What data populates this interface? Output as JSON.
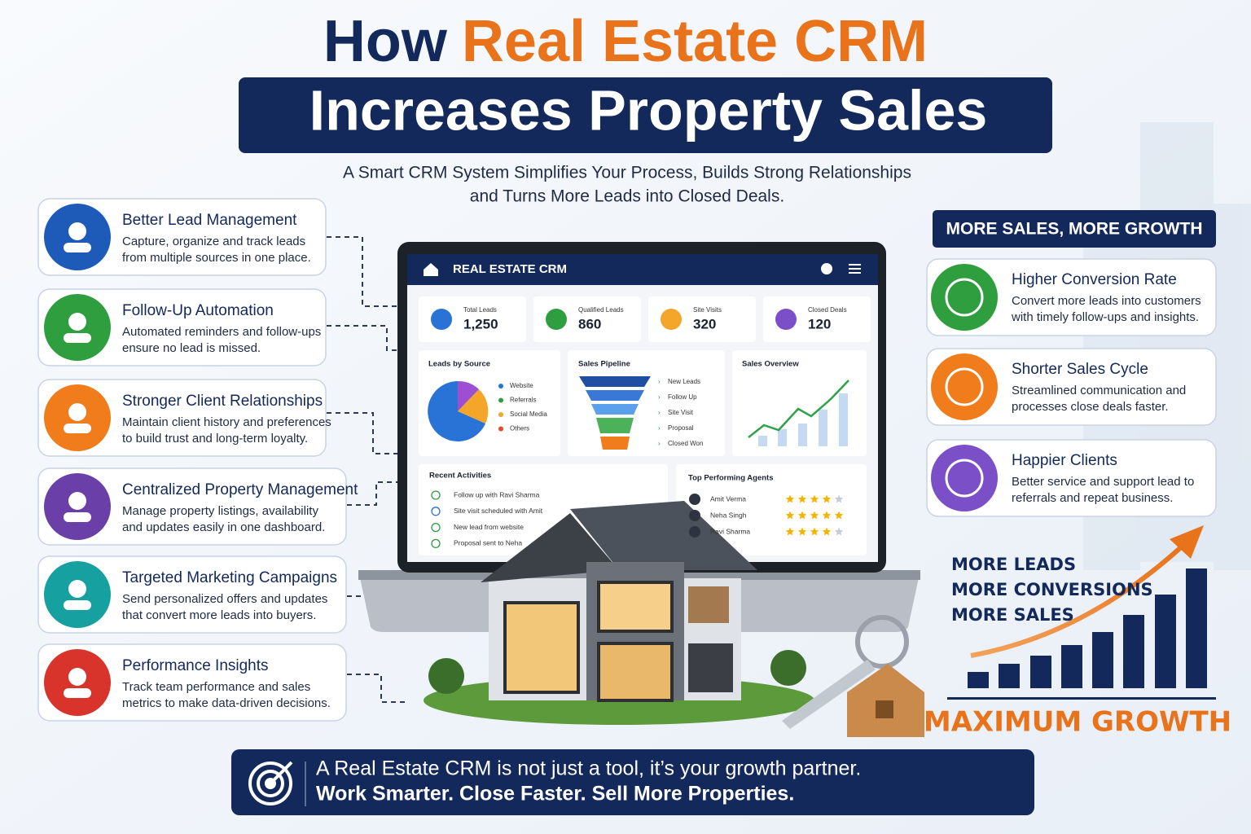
{
  "title": {
    "prefix": "How",
    "highlight": "Real Estate CRM",
    "line2": "Increases Property Sales"
  },
  "subtitle": [
    "A Smart CRM System Simplifies Your Process, Builds Strong Relationships",
    "and Turns More Leads into Closed Deals."
  ],
  "features": [
    {
      "title": "Better Lead Management",
      "lines": [
        "Capture, organize and track leads",
        "from multiple sources in one place."
      ]
    },
    {
      "title": "Follow-Up Automation",
      "lines": [
        "Automated reminders and follow-ups",
        "ensure no lead is missed."
      ]
    },
    {
      "title": "Stronger Client Relationships",
      "lines": [
        "Maintain client history and preferences",
        "to build trust and long-term loyalty."
      ]
    },
    {
      "title": "Centralized Property Management",
      "lines": [
        "Manage property listings, availability",
        "and updates easily in one dashboard."
      ]
    },
    {
      "title": "Targeted Marketing Campaigns",
      "lines": [
        "Send personalized offers and updates",
        "that convert more leads into buyers."
      ]
    },
    {
      "title": "Performance Insights",
      "lines": [
        "Track team performance and sales",
        "metrics to make data-driven decisions."
      ]
    }
  ],
  "dashboard": {
    "app_title": "REAL ESTATE CRM",
    "stats": [
      {
        "label": "Total Leads",
        "value": "1,250"
      },
      {
        "label": "Qualified Leads",
        "value": "860"
      },
      {
        "label": "Site Visits",
        "value": "320"
      },
      {
        "label": "Closed Deals",
        "value": "120"
      }
    ],
    "leads_by_source": {
      "title": "Leads by Source",
      "legend": [
        "Website",
        "Referrals",
        "Social Media",
        "Others"
      ]
    },
    "pipeline": {
      "title": "Sales Pipeline",
      "stages": [
        "New Leads",
        "Follow Up",
        "Site Visit",
        "Proposal",
        "Closed Won"
      ]
    },
    "overview": {
      "title": "Sales Overview"
    },
    "activities": {
      "title": "Recent Activities",
      "items": [
        "Follow up with Ravi Sharma",
        "Site visit scheduled with Amit",
        "New lead from website",
        "Proposal sent to Neha"
      ]
    },
    "agents": {
      "title": "Top Performing Agents",
      "items": [
        {
          "name": "Amit Verma",
          "rating": 4
        },
        {
          "name": "Neha Singh",
          "rating": 5
        },
        {
          "name": "Ravi Sharma",
          "rating": 4
        }
      ]
    }
  },
  "benefits": {
    "heading": "MORE SALES, MORE GROWTH",
    "items": [
      {
        "title": "Higher Conversion Rate",
        "lines": [
          "Convert more leads into customers",
          "with timely follow-ups and insights."
        ]
      },
      {
        "title": "Shorter Sales Cycle",
        "lines": [
          "Streamlined communication and",
          "processes close deals faster."
        ]
      },
      {
        "title": "Happier Clients",
        "lines": [
          "Better service and support lead to",
          "referrals and repeat business."
        ]
      }
    ]
  },
  "growth": {
    "lines": [
      "MORE LEADS",
      "MORE CONVERSIONS",
      "MORE SALES"
    ],
    "caption": "MAXIMUM GROWTH"
  },
  "banner": [
    "A Real Estate CRM is not just a tool, it’s your growth partner.",
    "Work Smarter. Close Faster. Sell More Properties."
  ]
}
